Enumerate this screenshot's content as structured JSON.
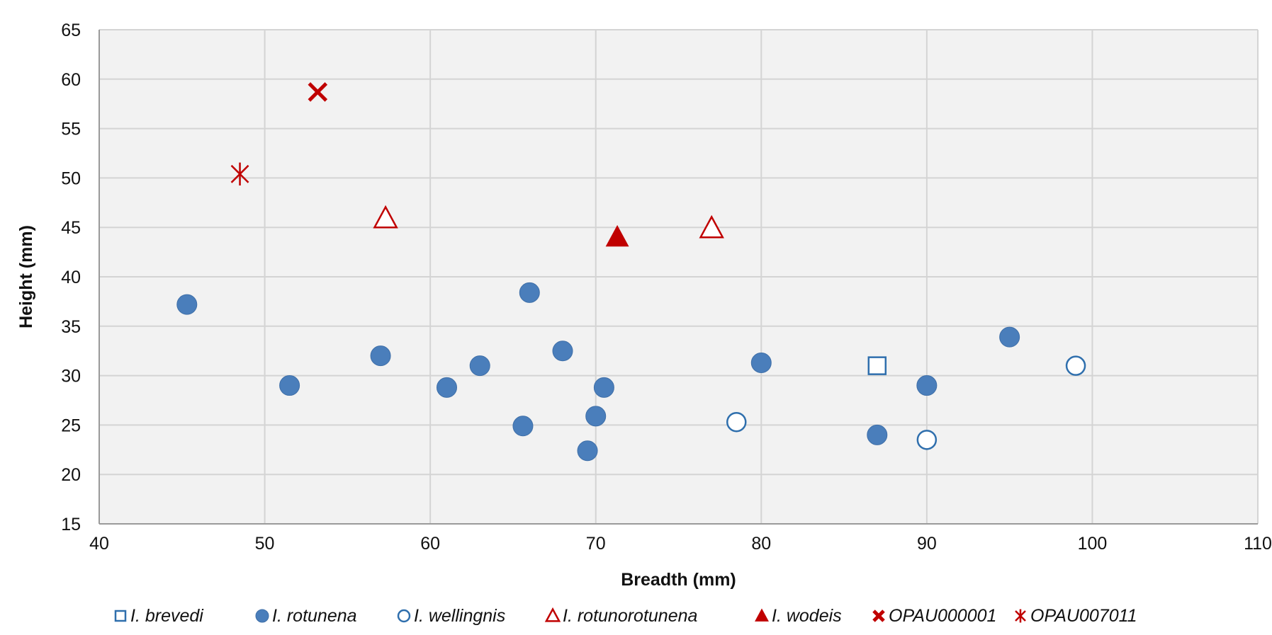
{
  "chart_data": {
    "type": "scatter",
    "title": "",
    "xlabel": "Breadth (mm)",
    "ylabel": "Height (mm)",
    "xlim": [
      40,
      110
    ],
    "ylim": [
      15,
      65
    ],
    "x_ticks": [
      40,
      50,
      60,
      70,
      80,
      90,
      100,
      110
    ],
    "y_ticks": [
      15,
      20,
      25,
      30,
      35,
      40,
      45,
      50,
      55,
      60,
      65
    ],
    "grid": true,
    "legend_position": "bottom",
    "series": [
      {
        "name": "I. brevedi",
        "marker": "square-open",
        "color": "#2f6fad",
        "points": [
          [
            87.0,
            31.0
          ]
        ]
      },
      {
        "name": "I. rotunena",
        "marker": "circle-filled",
        "color": "#4a7ebb",
        "points": [
          [
            45.3,
            37.2
          ],
          [
            51.5,
            29.0
          ],
          [
            57.0,
            32.0
          ],
          [
            61.0,
            28.8
          ],
          [
            63.0,
            31.0
          ],
          [
            65.6,
            24.9
          ],
          [
            66.0,
            38.4
          ],
          [
            68.0,
            32.5
          ],
          [
            69.5,
            22.4
          ],
          [
            70.0,
            25.9
          ],
          [
            70.5,
            28.8
          ],
          [
            80.0,
            31.3
          ],
          [
            87.0,
            24.0
          ],
          [
            90.0,
            29.0
          ],
          [
            95.0,
            33.9
          ]
        ]
      },
      {
        "name": "I. wellingnis",
        "marker": "circle-open",
        "color": "#2f6fad",
        "points": [
          [
            78.5,
            25.3
          ],
          [
            90.0,
            23.5
          ],
          [
            99.0,
            31.0
          ]
        ]
      },
      {
        "name": "I. rotunorotunena",
        "marker": "triangle-open",
        "color": "#c00000",
        "points": [
          [
            57.3,
            45.9
          ],
          [
            77.0,
            44.9
          ]
        ]
      },
      {
        "name": "I. wodeis",
        "marker": "triangle-filled",
        "color": "#c00000",
        "points": [
          [
            71.3,
            44.0
          ]
        ]
      },
      {
        "name": "OPAU000001",
        "marker": "x",
        "color": "#c00000",
        "points": [
          [
            53.2,
            58.7
          ]
        ]
      },
      {
        "name": "OPAU007011",
        "marker": "star",
        "color": "#c00000",
        "points": [
          [
            48.5,
            50.4
          ]
        ]
      }
    ]
  }
}
